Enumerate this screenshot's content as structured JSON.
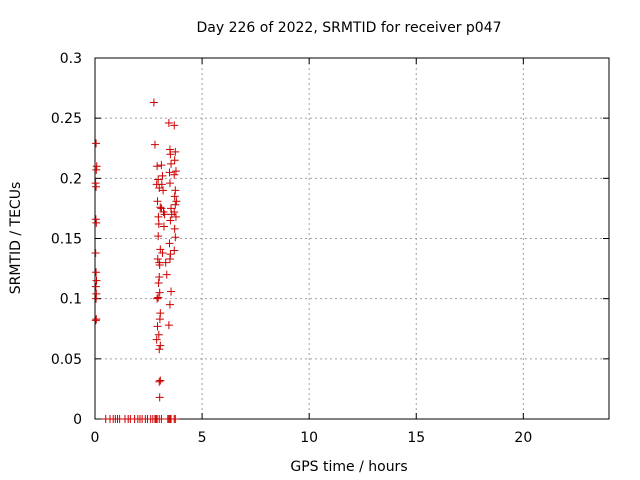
{
  "chart_data": {
    "type": "scatter",
    "title": "Day 226 of 2022, SRMTID for receiver p047",
    "xlabel": "GPS time / hours",
    "ylabel": "SRMTID / TECUs",
    "xlim": [
      0,
      24
    ],
    "ylim": [
      0,
      0.3
    ],
    "xticks": [
      0,
      5,
      10,
      15,
      20
    ],
    "xtick_labels": [
      "0",
      "5",
      "10",
      "15",
      "20"
    ],
    "yticks": [
      0,
      0.05,
      0.1,
      0.15,
      0.2,
      0.25,
      0.3
    ],
    "ytick_labels": [
      "0",
      "0.05",
      "0.1",
      "0.15",
      "0.2",
      "0.25",
      "0.3"
    ],
    "grid": true,
    "marker": "+",
    "color": "#cc0000",
    "series": [
      {
        "name": "SRMTID",
        "points": [
          [
            0.05,
            0.229
          ],
          [
            0.08,
            0.21
          ],
          [
            0.06,
            0.207
          ],
          [
            0.03,
            0.196
          ],
          [
            0.05,
            0.193
          ],
          [
            0.04,
            0.166
          ],
          [
            0.06,
            0.163
          ],
          [
            0.03,
            0.138
          ],
          [
            0.05,
            0.122
          ],
          [
            0.07,
            0.115
          ],
          [
            0.04,
            0.11
          ],
          [
            0.06,
            0.104
          ],
          [
            0.05,
            0.1
          ],
          [
            0.06,
            0.083
          ],
          [
            0.04,
            0.082
          ],
          [
            2.75,
            0.263
          ],
          [
            2.8,
            0.228
          ],
          [
            2.9,
            0.21
          ],
          [
            2.95,
            0.199
          ],
          [
            2.88,
            0.195
          ],
          [
            3.0,
            0.192
          ],
          [
            2.92,
            0.181
          ],
          [
            3.05,
            0.176
          ],
          [
            2.96,
            0.168
          ],
          [
            2.98,
            0.162
          ],
          [
            2.95,
            0.152
          ],
          [
            3.05,
            0.141
          ],
          [
            2.93,
            0.133
          ],
          [
            3.0,
            0.13
          ],
          [
            3.02,
            0.128
          ],
          [
            3.0,
            0.118
          ],
          [
            2.97,
            0.113
          ],
          [
            3.02,
            0.105
          ],
          [
            2.95,
            0.101
          ],
          [
            2.9,
            0.1
          ],
          [
            3.05,
            0.088
          ],
          [
            3.03,
            0.083
          ],
          [
            2.92,
            0.077
          ],
          [
            2.98,
            0.07
          ],
          [
            2.88,
            0.066
          ],
          [
            3.05,
            0.061
          ],
          [
            3.0,
            0.058
          ],
          [
            3.05,
            0.032
          ],
          [
            3.0,
            0.031
          ],
          [
            3.02,
            0.018
          ],
          [
            3.1,
            0.211
          ],
          [
            3.15,
            0.202
          ],
          [
            3.12,
            0.195
          ],
          [
            3.18,
            0.19
          ],
          [
            3.1,
            0.175
          ],
          [
            3.2,
            0.172
          ],
          [
            3.25,
            0.17
          ],
          [
            3.22,
            0.16
          ],
          [
            3.15,
            0.138
          ],
          [
            3.3,
            0.13
          ],
          [
            3.35,
            0.12
          ],
          [
            3.45,
            0.246
          ],
          [
            3.5,
            0.224
          ],
          [
            3.52,
            0.22
          ],
          [
            3.55,
            0.212
          ],
          [
            3.48,
            0.205
          ],
          [
            3.5,
            0.196
          ],
          [
            3.55,
            0.175
          ],
          [
            3.58,
            0.17
          ],
          [
            3.52,
            0.165
          ],
          [
            3.48,
            0.146
          ],
          [
            3.52,
            0.137
          ],
          [
            3.5,
            0.133
          ],
          [
            3.55,
            0.106
          ],
          [
            3.5,
            0.095
          ],
          [
            3.45,
            0.078
          ],
          [
            3.7,
            0.244
          ],
          [
            3.75,
            0.222
          ],
          [
            3.72,
            0.215
          ],
          [
            3.78,
            0.206
          ],
          [
            3.7,
            0.203
          ],
          [
            3.75,
            0.19
          ],
          [
            3.72,
            0.185
          ],
          [
            3.8,
            0.181
          ],
          [
            3.75,
            0.178
          ],
          [
            3.7,
            0.172
          ],
          [
            3.78,
            0.168
          ],
          [
            3.72,
            0.158
          ],
          [
            3.75,
            0.151
          ],
          [
            3.7,
            0.14
          ],
          [
            0.5,
            0
          ],
          [
            0.7,
            0
          ],
          [
            0.85,
            0
          ],
          [
            0.95,
            0
          ],
          [
            1.05,
            0
          ],
          [
            1.15,
            0
          ],
          [
            1.4,
            0
          ],
          [
            1.55,
            0
          ],
          [
            1.65,
            0
          ],
          [
            1.85,
            0
          ],
          [
            2.0,
            0
          ],
          [
            2.1,
            0
          ],
          [
            2.2,
            0
          ],
          [
            2.35,
            0
          ],
          [
            2.45,
            0
          ],
          [
            2.6,
            0
          ],
          [
            2.7,
            0
          ],
          [
            2.8,
            0
          ],
          [
            2.85,
            0
          ],
          [
            2.9,
            0
          ],
          [
            3.0,
            0
          ],
          [
            3.1,
            0
          ],
          [
            3.4,
            0
          ],
          [
            3.45,
            0
          ],
          [
            3.5,
            0
          ],
          [
            3.55,
            0
          ],
          [
            3.7,
            0
          ],
          [
            3.75,
            0
          ]
        ]
      }
    ]
  }
}
